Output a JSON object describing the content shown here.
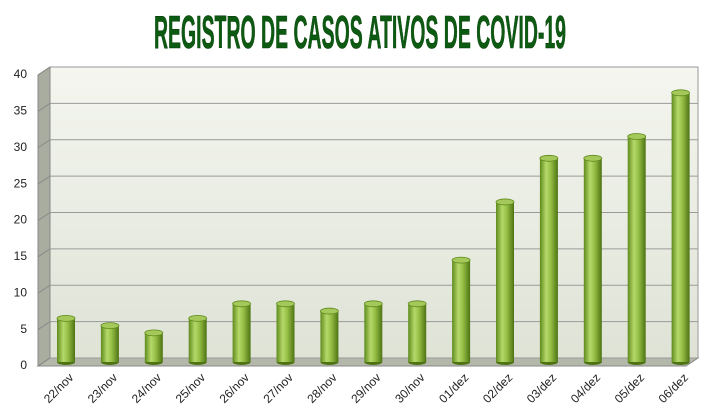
{
  "chart_data": {
    "type": "bar",
    "title": "REGISTRO DE CASOS ATIVOS DE COVID-19",
    "categories": [
      "22/nov",
      "23/nov",
      "24/nov",
      "25/nov",
      "26/nov",
      "27/nov",
      "28/nov",
      "29/nov",
      "30/nov",
      "01/dez",
      "02/dez",
      "03/dez",
      "04/dez",
      "05/dez",
      "06/dez"
    ],
    "values": [
      6,
      5,
      4,
      6,
      8,
      8,
      7,
      8,
      8,
      14,
      22,
      28,
      28,
      31,
      37
    ],
    "color": "#8cb43c",
    "ylim": [
      0,
      40
    ],
    "yticks": [
      0,
      5,
      10,
      15,
      20,
      25,
      30,
      35,
      40
    ],
    "grid": true
  }
}
